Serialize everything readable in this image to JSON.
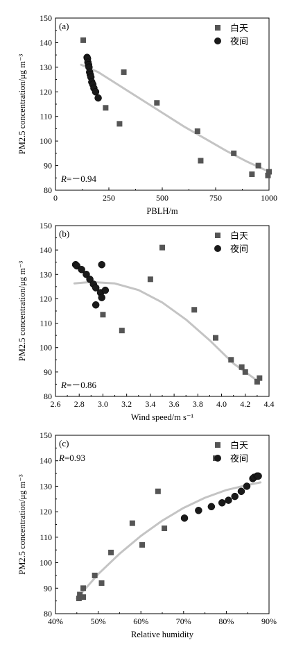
{
  "colors": {
    "day": "#555555",
    "night": "#1a1a1a",
    "fit": "#c4c4c4",
    "axis": "#000000"
  },
  "chart_data": [
    {
      "panel": "(a)",
      "type": "scatter",
      "xlabel": "PBLH/m",
      "ylabel": "PM2.5 concentration/μg m⁻³",
      "xlim": [
        0,
        1000
      ],
      "ylim": [
        80,
        150
      ],
      "xticks": [
        0,
        250,
        500,
        750,
        1000
      ],
      "xtick_labels": [
        "0",
        "250",
        "500",
        "750",
        "1000"
      ],
      "yticks": [
        80,
        90,
        100,
        110,
        120,
        130,
        140,
        150
      ],
      "legend_position": "top-right",
      "annotation": "R=－0.94",
      "annotation_position": "bottom-left",
      "series": [
        {
          "name": "白天",
          "marker": "square",
          "points": [
            [
              130,
              141
            ],
            [
              235,
              113.5
            ],
            [
              300,
              107
            ],
            [
              320,
              128
            ],
            [
              475,
              115.5
            ],
            [
              665,
              104
            ],
            [
              680,
              92
            ],
            [
              835,
              95
            ],
            [
              920,
              86.5
            ],
            [
              950,
              90
            ],
            [
              995,
              86
            ],
            [
              1000,
              87.5
            ]
          ]
        },
        {
          "name": "夜间",
          "marker": "circle",
          "points": [
            [
              148,
              134
            ],
            [
              150,
              133.5
            ],
            [
              152,
              132
            ],
            [
              155,
              131
            ],
            [
              157,
              130
            ],
            [
              160,
              128
            ],
            [
              163,
              127
            ],
            [
              166,
              126
            ],
            [
              170,
              124
            ],
            [
              175,
              123
            ],
            [
              180,
              121.5
            ],
            [
              188,
              120
            ],
            [
              200,
              117.5
            ]
          ]
        }
      ],
      "fit": {
        "points": [
          [
            120,
            131
          ],
          [
            200,
            128
          ],
          [
            300,
            122.5
          ],
          [
            400,
            117
          ],
          [
            500,
            111.5
          ],
          [
            600,
            106
          ],
          [
            700,
            101
          ],
          [
            800,
            96
          ],
          [
            900,
            91.5
          ],
          [
            1000,
            87.5
          ]
        ]
      }
    },
    {
      "panel": "(b)",
      "type": "scatter",
      "xlabel": "Wind speed/m s⁻¹",
      "ylabel": "PM2.5 concentration/μg m⁻³",
      "xlim": [
        2.6,
        4.4
      ],
      "ylim": [
        80,
        150
      ],
      "xticks": [
        2.6,
        2.8,
        3.0,
        3.2,
        3.4,
        3.6,
        3.8,
        4.0,
        4.2,
        4.4
      ],
      "xtick_labels": [
        "2.6",
        "2.8",
        "3.0",
        "3.2",
        "3.4",
        "3.6",
        "3.8",
        "4.0",
        "4.2",
        "4.4"
      ],
      "yticks": [
        80,
        90,
        100,
        110,
        120,
        130,
        140,
        150
      ],
      "legend_position": "top-right",
      "annotation": "R=－0.86",
      "annotation_position": "bottom-left",
      "series": [
        {
          "name": "白天",
          "marker": "square",
          "points": [
            [
              3.0,
              113.5
            ],
            [
              3.16,
              107
            ],
            [
              3.4,
              128
            ],
            [
              3.5,
              141
            ],
            [
              3.77,
              115.5
            ],
            [
              3.95,
              104
            ],
            [
              4.08,
              95
            ],
            [
              4.17,
              92
            ],
            [
              4.2,
              90
            ],
            [
              4.3,
              86
            ],
            [
              4.32,
              87.5
            ]
          ]
        },
        {
          "name": "夜间",
          "marker": "circle",
          "points": [
            [
              2.77,
              134
            ],
            [
              2.78,
              133.5
            ],
            [
              2.82,
              132
            ],
            [
              2.86,
              130
            ],
            [
              2.89,
              128
            ],
            [
              2.92,
              126
            ],
            [
              2.94,
              124.5
            ],
            [
              2.94,
              117.5
            ],
            [
              2.98,
              122.5
            ],
            [
              2.99,
              120.5
            ],
            [
              3.02,
              123.5
            ],
            [
              2.99,
              134
            ]
          ]
        }
      ],
      "fit": {
        "points": [
          [
            2.76,
            126.3
          ],
          [
            2.9,
            126.9
          ],
          [
            3.1,
            126.3
          ],
          [
            3.3,
            123.6
          ],
          [
            3.5,
            118.5
          ],
          [
            3.7,
            111.5
          ],
          [
            3.9,
            103
          ],
          [
            4.1,
            93.5
          ],
          [
            4.3,
            86.5
          ]
        ]
      }
    },
    {
      "panel": "(c)",
      "type": "scatter",
      "xlabel": "Relative humidity",
      "ylabel": "PM2.5 concentration/μg m⁻³",
      "xlim": [
        40,
        90
      ],
      "ylim": [
        80,
        150
      ],
      "xticks": [
        40,
        50,
        60,
        70,
        80,
        90
      ],
      "xtick_labels": [
        "40%",
        "50%",
        "60%",
        "70%",
        "80%",
        "90%"
      ],
      "yticks": [
        80,
        90,
        100,
        110,
        120,
        130,
        140,
        150
      ],
      "legend_position": "top-right",
      "annotation": "R=0.93",
      "annotation_position": "top-left",
      "series": [
        {
          "name": "白天",
          "marker": "square",
          "points": [
            [
              45.5,
              86
            ],
            [
              45.7,
              87.5
            ],
            [
              46.5,
              86.5
            ],
            [
              46.5,
              90
            ],
            [
              49.2,
              95
            ],
            [
              50.8,
              92
            ],
            [
              53,
              104
            ],
            [
              58,
              115.5
            ],
            [
              60.3,
              107
            ],
            [
              64,
              128
            ],
            [
              65.5,
              113.5
            ],
            [
              77.5,
              141
            ]
          ]
        },
        {
          "name": "夜间",
          "marker": "circle",
          "points": [
            [
              70.2,
              117.5
            ],
            [
              73.5,
              120.5
            ],
            [
              76.5,
              122
            ],
            [
              79,
              123.5
            ],
            [
              80.5,
              124.5
            ],
            [
              82,
              126
            ],
            [
              83.5,
              128
            ],
            [
              84.8,
              130
            ],
            [
              86.2,
              133
            ],
            [
              86.5,
              133.5
            ],
            [
              87.2,
              134
            ],
            [
              87.5,
              134
            ]
          ]
        }
      ],
      "fit": {
        "points": [
          [
            45,
            86
          ],
          [
            50,
            95.5
          ],
          [
            55,
            103.5
          ],
          [
            60,
            110.5
          ],
          [
            65,
            116.5
          ],
          [
            70,
            121.5
          ],
          [
            75,
            125.5
          ],
          [
            80,
            128.5
          ],
          [
            85,
            130.5
          ],
          [
            88,
            131.5
          ]
        ]
      }
    }
  ]
}
